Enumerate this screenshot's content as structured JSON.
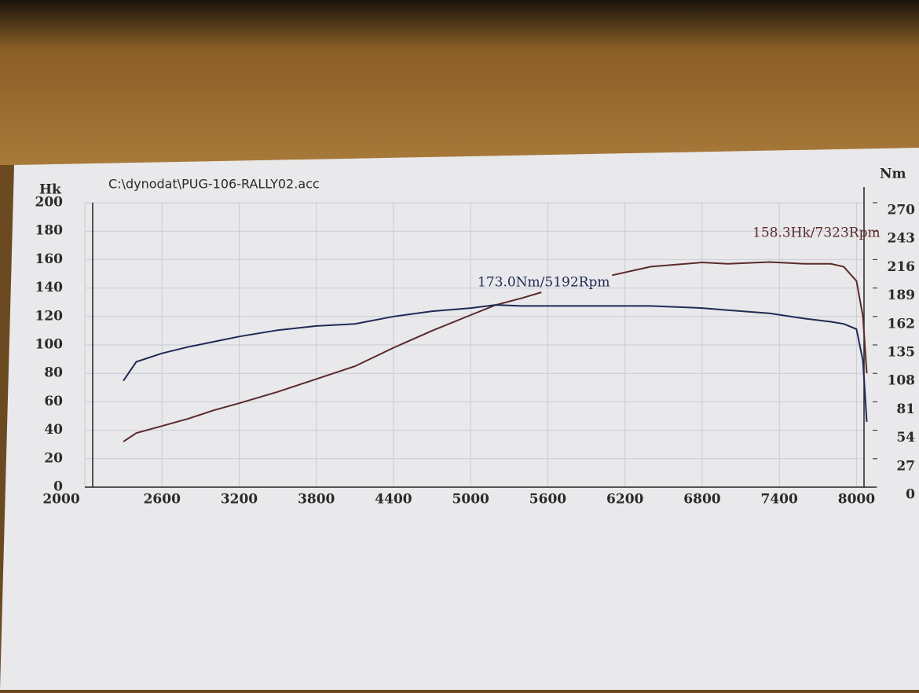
{
  "chart_data": {
    "type": "line",
    "title": "C:\\dynodat\\PUG-106-RALLY02.acc",
    "y_label": "Hk",
    "y2_label": "Nm",
    "x": [
      2300,
      2400,
      2600,
      2800,
      3000,
      3200,
      3500,
      3800,
      4100,
      4400,
      4700,
      5000,
      5192,
      5400,
      5550,
      5800,
      6100,
      6400,
      6800,
      7000,
      7323,
      7600,
      7800,
      7900,
      8000,
      8050,
      8080
    ],
    "series": [
      {
        "color": "#5a2a2a",
        "axis": "y",
        "values": [
          32,
          38,
          43,
          48,
          54,
          59,
          67,
          76,
          85,
          98,
          110,
          121,
          128,
          133,
          137,
          null,
          149,
          155,
          158,
          157,
          158.3,
          157,
          157,
          155,
          145,
          120,
          80
        ]
      },
      {
        "color": "#1f2a55",
        "axis": "y2",
        "values": [
          101,
          119,
          127,
          133,
          138,
          143,
          149,
          153,
          155,
          162,
          167,
          170,
          173,
          172,
          172,
          172,
          172,
          172,
          170,
          168,
          165,
          160,
          157,
          155,
          150,
          120,
          62
        ]
      }
    ],
    "annotations": [
      "173.0Nm/5192Rpm",
      "158.3Hk/7323Rpm"
    ],
    "xlim": [
      2000,
      8150
    ],
    "xticks": [
      2000,
      2600,
      3200,
      3800,
      4400,
      5000,
      5600,
      6200,
      6800,
      7400,
      8000
    ],
    "ylim": [
      0,
      200
    ],
    "yticks": [
      0,
      20,
      40,
      60,
      80,
      100,
      120,
      140,
      160,
      180,
      200
    ],
    "y2lim": [
      0,
      270
    ],
    "y2ticks": [
      0,
      27,
      54,
      81,
      108,
      135,
      162,
      189,
      216,
      243,
      270
    ],
    "grid": true
  }
}
